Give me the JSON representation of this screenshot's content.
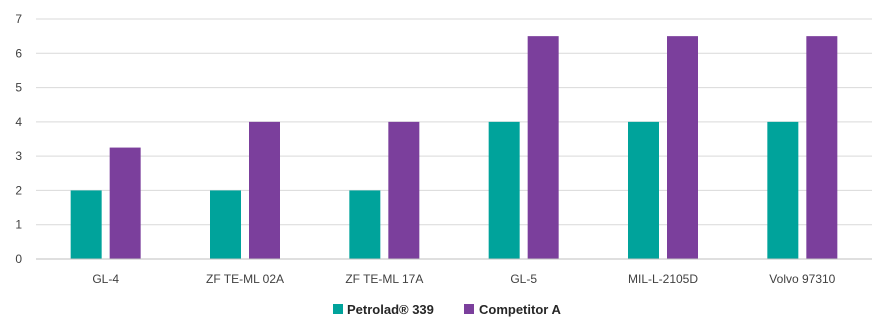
{
  "chart_data": {
    "type": "bar",
    "title": "",
    "xlabel": "",
    "ylabel": "",
    "ylim": [
      0,
      7
    ],
    "yticks": [
      0,
      1,
      2,
      3,
      4,
      5,
      6,
      7
    ],
    "grid": true,
    "legend_position": "bottom-center",
    "categories": [
      "GL-4",
      "ZF TE-ML 02A",
      "ZF TE-ML 17A",
      "GL-5",
      "MIL-L-2105D",
      "Volvo 97310"
    ],
    "series": [
      {
        "name": "Petrolad® 339",
        "color": "#00A39B",
        "values": [
          2,
          2,
          2,
          4,
          4,
          4
        ]
      },
      {
        "name": "Competitor A",
        "color": "#7B3F9C",
        "values": [
          3.25,
          4,
          4,
          6.5,
          6.5,
          6.5
        ]
      }
    ]
  }
}
